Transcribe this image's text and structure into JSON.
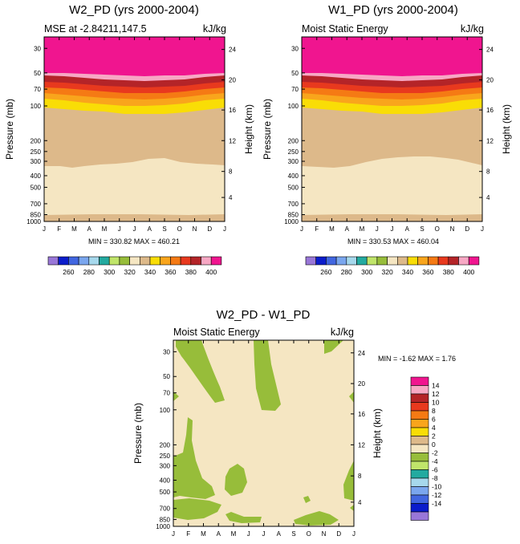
{
  "chart_data": [
    {
      "type": "contour-fill",
      "title": "W2_PD (yrs 2000-2004)",
      "left_subtitle": "MSE at -2.84211,147.5",
      "right_subtitle": "kJ/kg",
      "ylabel": "Pressure (mb)",
      "ylabel_right": "Height (km)",
      "x_ticks": [
        "J",
        "F",
        "M",
        "A",
        "M",
        "J",
        "J",
        "A",
        "S",
        "O",
        "N",
        "D",
        "J"
      ],
      "y_ticks": [
        "30",
        "50",
        "70",
        "100",
        "200",
        "250",
        "300",
        "400",
        "500",
        "700",
        "850",
        "1000"
      ],
      "y_right_ticks": [
        "24",
        "20",
        "16",
        "12",
        "8",
        "4"
      ],
      "stats": "MIN = 330.82 MAX = 460.21",
      "colorbar_labels": [
        "260",
        "280",
        "300",
        "320",
        "340",
        "360",
        "380",
        "400"
      ]
    },
    {
      "type": "contour-fill",
      "title": "W1_PD (yrs 2000-2004)",
      "left_subtitle": "Moist Static Energy",
      "right_subtitle": "kJ/kg",
      "ylabel": "Pressure (mb)",
      "ylabel_right": "Height (km)",
      "x_ticks": [
        "J",
        "F",
        "M",
        "A",
        "M",
        "J",
        "J",
        "A",
        "S",
        "O",
        "N",
        "D",
        "J"
      ],
      "y_ticks": [
        "30",
        "50",
        "70",
        "100",
        "200",
        "250",
        "300",
        "400",
        "500",
        "700",
        "850",
        "1000"
      ],
      "y_right_ticks": [
        "24",
        "20",
        "16",
        "12",
        "8",
        "4"
      ],
      "stats": "MIN = 330.53 MAX = 460.04",
      "colorbar_labels": [
        "260",
        "280",
        "300",
        "320",
        "340",
        "360",
        "380",
        "400"
      ]
    },
    {
      "type": "contour-fill",
      "title": "W2_PD - W1_PD",
      "left_subtitle": "Moist Static Energy",
      "right_subtitle": "kJ/kg",
      "ylabel": "Pressure (mb)",
      "ylabel_right": "Height (km)",
      "x_ticks": [
        "J",
        "F",
        "M",
        "A",
        "M",
        "J",
        "J",
        "A",
        "S",
        "O",
        "N",
        "D",
        "J"
      ],
      "y_ticks": [
        "30",
        "50",
        "70",
        "100",
        "200",
        "250",
        "300",
        "400",
        "500",
        "700",
        "850",
        "1000"
      ],
      "y_right_ticks": [
        "24",
        "20",
        "16",
        "12",
        "8",
        "4"
      ],
      "stats": "MIN =  -1.62 MAX =   1.76",
      "colorbar_labels": [
        "14",
        "12",
        "10",
        "8",
        "6",
        "4",
        "2",
        "0",
        "-2",
        "-4",
        "-6",
        "-8",
        "-10",
        "-12",
        "-14"
      ]
    }
  ],
  "colors": {
    "magenta": "#f0158f",
    "pink": "#f7a8c4",
    "darkred": "#b42428",
    "red": "#e8391e",
    "orange": "#f57a14",
    "lightorange": "#f9a51c",
    "yellow": "#f9dd06",
    "tan": "#ddb98a",
    "cream": "#f5e6c2",
    "green": "#97bd3a",
    "lightgreen": "#c0e56a",
    "teal": "#23aaa0",
    "lightblue": "#a6d8ec",
    "cornflower": "#7aa6ee",
    "royalblue": "#4166e0",
    "darkblue": "#0b1ccb",
    "lavender": "#9977d8"
  }
}
